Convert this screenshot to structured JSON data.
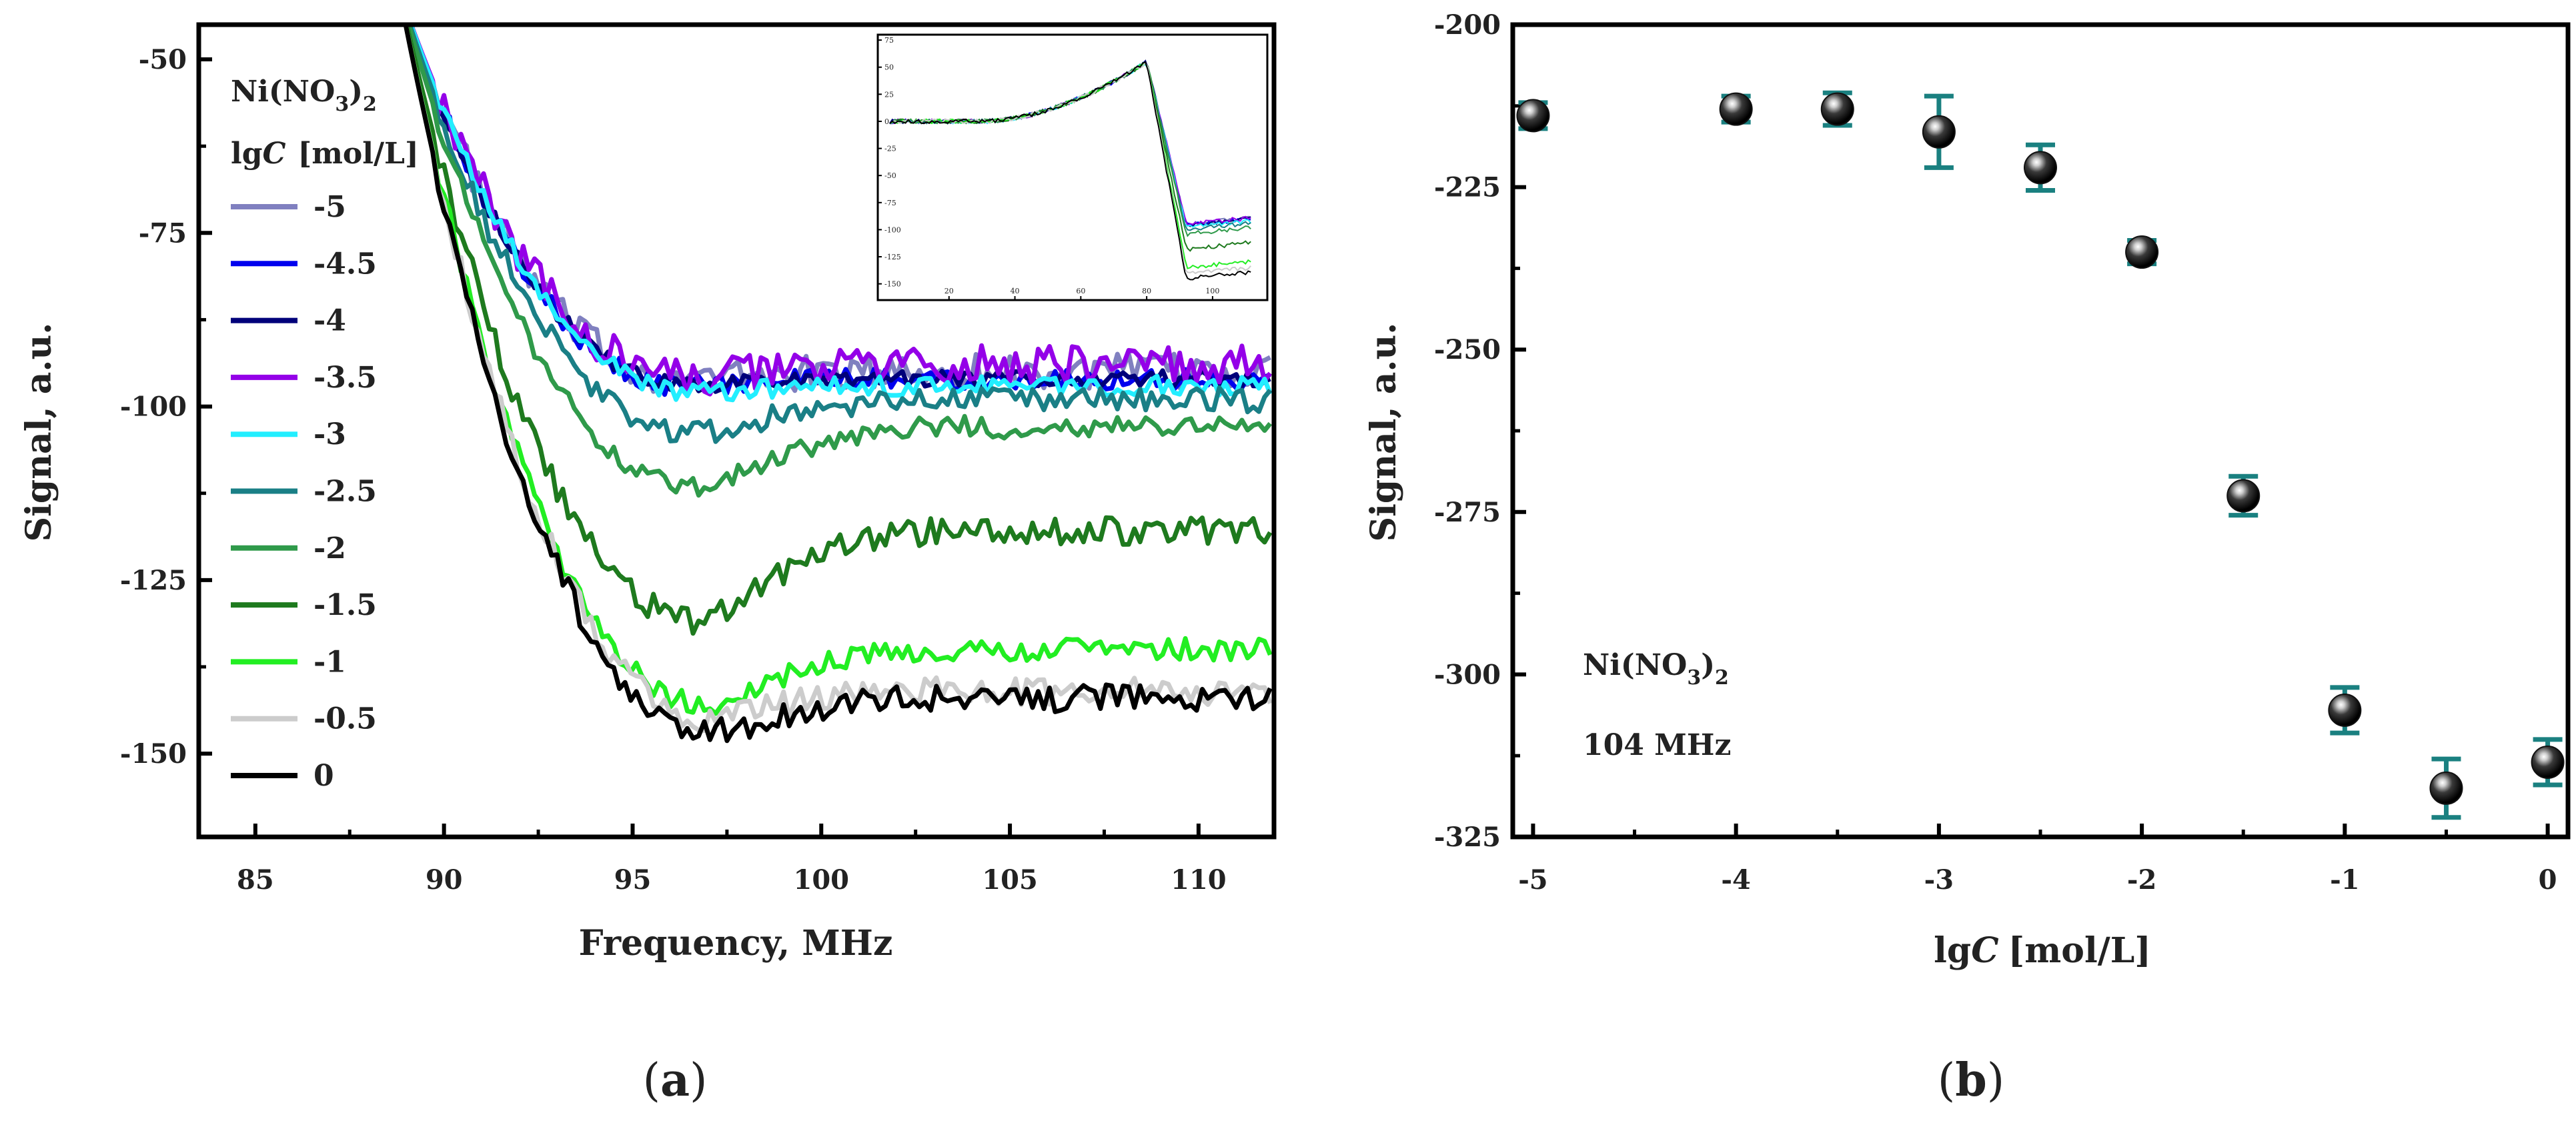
{
  "chart_data": [
    {
      "type": "line",
      "panel_label": "(a)",
      "panel_letter": "a",
      "xlabel": "Frequency, MHz",
      "ylabel": "Signal, a.u.",
      "xlim": [
        83.5,
        112
      ],
      "ylim": [
        -162,
        -45
      ],
      "xticks": [
        85,
        90,
        95,
        100,
        105,
        110
      ],
      "xtick_labels": [
        "85",
        "90",
        "95",
        "100",
        "105",
        "110"
      ],
      "yticks": [
        -50,
        -75,
        -100,
        -125,
        -150
      ],
      "ytick_labels": [
        "-50",
        "-75",
        "-100",
        "-125",
        "-150"
      ],
      "legend_title_compound": "Ni(NO",
      "legend_title_subscript": "3",
      "legend_title_close": ")",
      "legend_title_close_sub": "2",
      "legend_subtitle_lg": "lg",
      "legend_subtitle_c": "C",
      "legend_subtitle_unit": "[mol/L]",
      "series": [
        {
          "name": "-5",
          "color": "#8080c0",
          "plateau": -95,
          "noise": 2.6,
          "ymin": -96
        },
        {
          "name": "-4.5",
          "color": "#0000ee",
          "plateau": -96,
          "noise": 1.6,
          "ymin": -97
        },
        {
          "name": "-4",
          "color": "#00007a",
          "plateau": -96,
          "noise": 1.2,
          "ymin": -97
        },
        {
          "name": "-3.5",
          "color": "#9400e8",
          "plateau": -94,
          "noise": 2.8,
          "ymin": -96
        },
        {
          "name": "-3",
          "color": "#22eeff",
          "plateau": -97,
          "noise": 1.4,
          "ymin": -98
        },
        {
          "name": "-2.5",
          "color": "#1a7f86",
          "plateau": -99,
          "noise": 1.8,
          "ymin": -104
        },
        {
          "name": "-2",
          "color": "#2f9a4a",
          "plateau": -103,
          "noise": 1.6,
          "ymin": -112
        },
        {
          "name": "-1.5",
          "color": "#1e7a1e",
          "plateau": -118,
          "noise": 2.0,
          "ymin": -131
        },
        {
          "name": "-1",
          "color": "#22ee22",
          "plateau": -135,
          "noise": 1.6,
          "ymin": -143
        },
        {
          "name": "-0.5",
          "color": "#cccccc",
          "plateau": -141,
          "noise": 2.0,
          "ymin": -145
        },
        {
          "name": "0",
          "color": "#000000",
          "plateau": -142,
          "noise": 2.0,
          "ymin": -147
        }
      ],
      "inset": {
        "xticks": [
          20,
          40,
          60,
          80,
          100
        ],
        "yticks": [
          75,
          50,
          25,
          0,
          -25,
          -50,
          -75,
          -100,
          -125,
          -150
        ],
        "xlim": [
          0,
          115
        ],
        "ylim": [
          -165,
          80
        ]
      }
    },
    {
      "type": "scatter",
      "panel_label": "(b)",
      "panel_letter": "b",
      "xlabel_lg": "lg",
      "xlabel_c": "C",
      "xlabel_unit": "[mol/L]",
      "ylabel": "Signal, a.u.",
      "xlim": [
        -5.1,
        0.1
      ],
      "ylim": [
        -325,
        -200
      ],
      "xticks": [
        -5,
        -4,
        -3,
        -2,
        -1,
        0
      ],
      "xtick_labels": [
        "-5",
        "-4",
        "-3",
        "-2",
        "-1",
        "0"
      ],
      "yticks": [
        -200,
        -225,
        -250,
        -275,
        -300,
        -325
      ],
      "ytick_labels": [
        "-200",
        "-225",
        "-250",
        "-275",
        "-300",
        "-325"
      ],
      "annotation_compound": "Ni(NO",
      "annotation_subscript": "3",
      "annotation_close": ")",
      "annotation_close_sub": "2",
      "annotation_freq": "104 MHz",
      "x": [
        -5,
        -4,
        -3.5,
        -3,
        -2.5,
        -2,
        -1.5,
        -1,
        -0.5,
        0
      ],
      "y": [
        -214,
        -213,
        -213,
        -216.5,
        -222,
        -235,
        -272.5,
        -305.5,
        -317.5,
        -313.5
      ],
      "yerr": [
        2,
        2,
        2.5,
        5.5,
        3.5,
        1.8,
        3,
        3.5,
        4.5,
        3.5
      ],
      "marker_color": "#111111",
      "errorbar_color": "#1a8080"
    }
  ]
}
